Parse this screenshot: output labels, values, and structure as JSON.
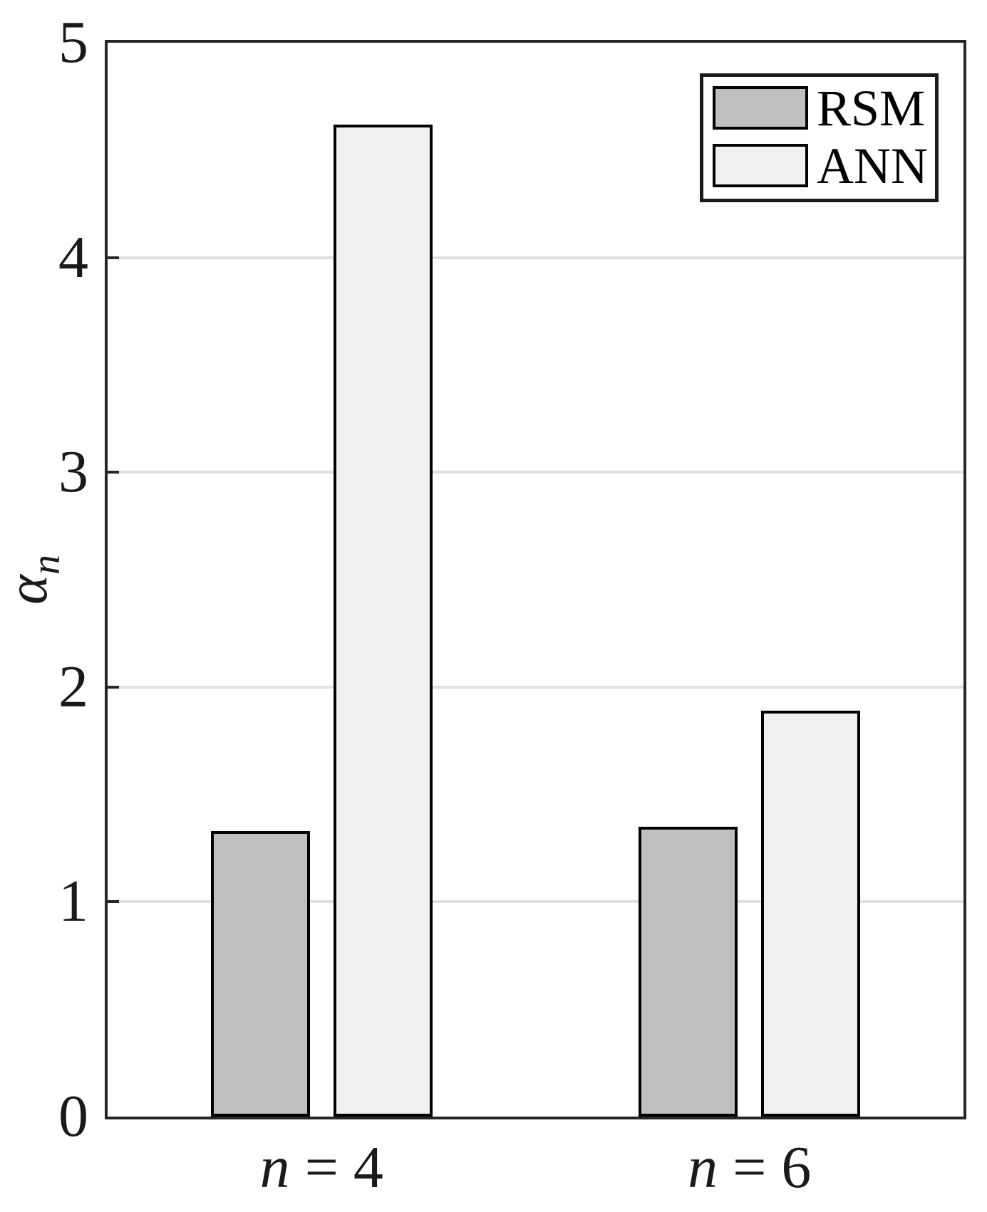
{
  "chart_data": {
    "type": "bar",
    "title": "",
    "categories": [
      "n = 4",
      "n = 6"
    ],
    "series": [
      {
        "name": "RSM",
        "values": [
          1.33,
          1.35
        ],
        "fill": "#bfbfbf",
        "edge": "#000000"
      },
      {
        "name": "ANN",
        "values": [
          4.62,
          1.89
        ],
        "fill": "#f0f0f0",
        "edge": "#000000"
      }
    ],
    "xlabel": "",
    "ylabel": {
      "symbol": "α",
      "subscript": "n"
    },
    "ylim": [
      0,
      5
    ],
    "yticks": [
      0,
      1,
      2,
      3,
      4,
      5
    ],
    "grid": "horizontal",
    "grid_color": "#e0e0e0",
    "legend_position": "top-right"
  },
  "colors": {
    "axis": "#262626",
    "grid": "#e0e0e0",
    "bar_edge": "#000000",
    "legend_border": "#1a1a1a",
    "background": "#ffffff"
  }
}
